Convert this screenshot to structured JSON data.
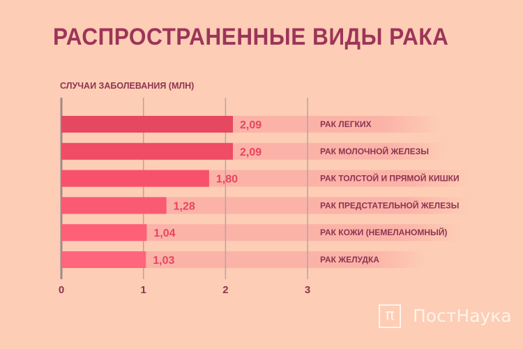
{
  "title": "РАСПРОСТРАНЕННЫЕ ВИДЫ РАКА",
  "logo": {
    "mark": "П",
    "text": "ПостНаука"
  },
  "colors": {
    "background": "#fdcdb5",
    "bar": "#f24d69",
    "track": "#fbb3a8",
    "title": "#9c3558",
    "value": "#e8445f"
  },
  "chart_data": {
    "type": "bar",
    "orientation": "horizontal",
    "ylabel": "СЛУЧАИ ЗАБОЛЕВАНИЯ (МЛН)",
    "categories": [
      "РАК ЛЕГКИХ",
      "РАК МОЛОЧНОЙ ЖЕЛЕЗЫ",
      "РАК ТОЛСТОЙ И ПРЯМОЙ КИШКИ",
      "РАК ПРЕДСТАТЕЛЬНОЙ ЖЕЛЕЗЫ",
      "РАК КОЖИ (НЕМЕЛАНОМНЫЙ)",
      "РАК ЖЕЛУДКА"
    ],
    "values": [
      2.09,
      2.09,
      1.8,
      1.28,
      1.04,
      1.03
    ],
    "value_labels": [
      "2,09",
      "2,09",
      "1,80",
      "1,28",
      "1,04",
      "1,03"
    ],
    "xlim": [
      0,
      3
    ],
    "xticks": [
      "0",
      "1",
      "2",
      "3"
    ],
    "grid": true
  }
}
